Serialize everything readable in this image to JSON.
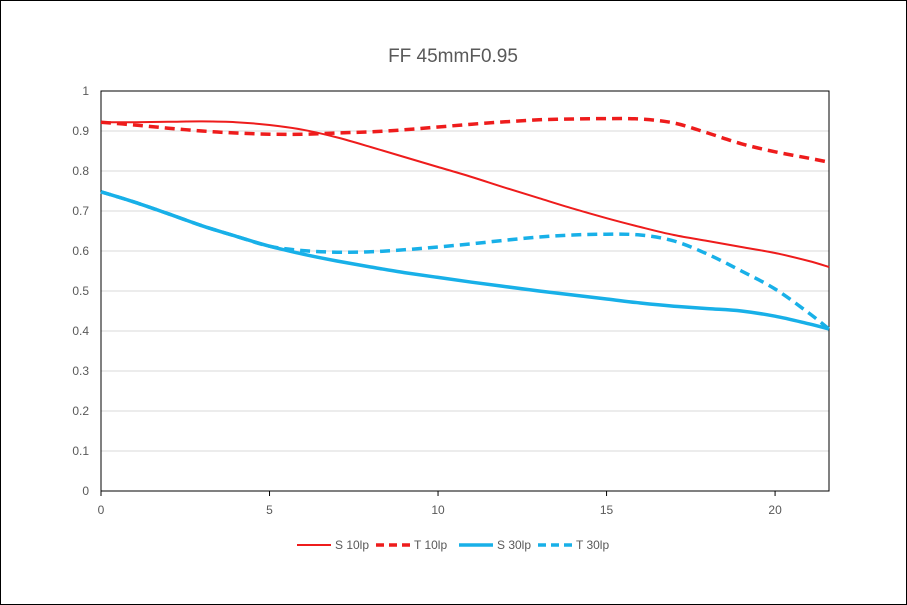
{
  "chart_data": {
    "type": "line",
    "title": "FF 45mmF0.95",
    "xlabel": "",
    "ylabel": "",
    "xlim": [
      0,
      21.6
    ],
    "ylim": [
      0,
      1
    ],
    "x_ticks": [
      "0",
      "5",
      "10",
      "15",
      "20"
    ],
    "y_ticks": [
      "0",
      "0.1",
      "0.2",
      "0.3",
      "0.4",
      "0.5",
      "0.6",
      "0.7",
      "0.8",
      "0.9",
      "1"
    ],
    "grid": true,
    "legend_position": "bottom",
    "series": [
      {
        "name": "S 10lp",
        "color": "#ee1c1c",
        "dash": "solid",
        "x": [
          0,
          1,
          2,
          3,
          4,
          5,
          6,
          7,
          8,
          9,
          10,
          11,
          12,
          13,
          14,
          15,
          16,
          17,
          18,
          19,
          20,
          21,
          21.6
        ],
        "y": [
          0.922,
          0.922,
          0.923,
          0.924,
          0.922,
          0.915,
          0.903,
          0.884,
          0.86,
          0.835,
          0.81,
          0.785,
          0.758,
          0.732,
          0.706,
          0.682,
          0.66,
          0.64,
          0.625,
          0.61,
          0.595,
          0.575,
          0.56
        ]
      },
      {
        "name": "T 10lp",
        "color": "#ee1c1c",
        "dash": "dashed",
        "x": [
          0,
          1,
          2,
          3,
          4,
          5,
          6,
          7,
          8,
          9,
          10,
          11,
          12,
          13,
          14,
          15,
          16,
          17,
          18,
          19,
          20,
          21,
          21.6
        ],
        "y": [
          0.922,
          0.915,
          0.907,
          0.9,
          0.895,
          0.892,
          0.892,
          0.895,
          0.898,
          0.903,
          0.91,
          0.917,
          0.923,
          0.928,
          0.93,
          0.931,
          0.93,
          0.92,
          0.895,
          0.868,
          0.848,
          0.832,
          0.822
        ]
      },
      {
        "name": "S 30lp",
        "color": "#18b0e8",
        "dash": "solid",
        "x": [
          0,
          1,
          2,
          3,
          4,
          5,
          6,
          7,
          8,
          9,
          10,
          11,
          12,
          13,
          14,
          15,
          16,
          17,
          18,
          19,
          20,
          21,
          21.6
        ],
        "y": [
          0.748,
          0.722,
          0.693,
          0.663,
          0.637,
          0.612,
          0.592,
          0.575,
          0.56,
          0.546,
          0.534,
          0.522,
          0.511,
          0.5,
          0.49,
          0.48,
          0.47,
          0.462,
          0.456,
          0.45,
          0.437,
          0.418,
          0.405
        ]
      },
      {
        "name": "T 30lp",
        "color": "#18b0e8",
        "dash": "dashed",
        "x": [
          0,
          1,
          2,
          3,
          4,
          5,
          6,
          7,
          8,
          9,
          10,
          11,
          12,
          13,
          14,
          15,
          16,
          17,
          18,
          19,
          20,
          21,
          21.6
        ],
        "y": [
          0.748,
          0.722,
          0.693,
          0.663,
          0.637,
          0.612,
          0.601,
          0.597,
          0.598,
          0.603,
          0.61,
          0.618,
          0.627,
          0.635,
          0.64,
          0.642,
          0.64,
          0.625,
          0.592,
          0.55,
          0.505,
          0.445,
          0.405
        ]
      }
    ]
  }
}
